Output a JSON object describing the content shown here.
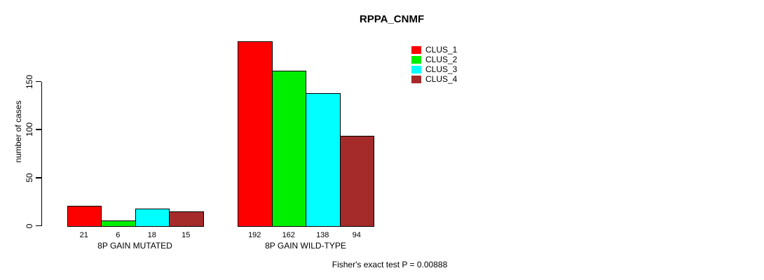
{
  "chart_data": {
    "type": "bar",
    "title": "RPPA_CNMF",
    "ylabel": "number of cases",
    "xlabel": "",
    "annotation": "Fisher's exact test P = 0.00888",
    "categories": [
      "8P GAIN MUTATED",
      "8P GAIN WILD-TYPE"
    ],
    "series": [
      {
        "name": "CLUS_1",
        "color": "#ff0000",
        "values": [
          21,
          192
        ]
      },
      {
        "name": "CLUS_2",
        "color": "#00ee00",
        "values": [
          6,
          162
        ]
      },
      {
        "name": "CLUS_3",
        "color": "#00ffff",
        "values": [
          18,
          138
        ]
      },
      {
        "name": "CLUS_4",
        "color": "#a52a2a",
        "values": [
          15,
          94
        ]
      }
    ],
    "yticks": [
      0,
      50,
      100,
      150
    ],
    "ylim": [
      0,
      195
    ],
    "grid": false,
    "bar_value_labels_shown": true,
    "legend_position": "top-right",
    "background": "#ffffff",
    "text_color": "#000000",
    "axis_color": "#000000"
  }
}
